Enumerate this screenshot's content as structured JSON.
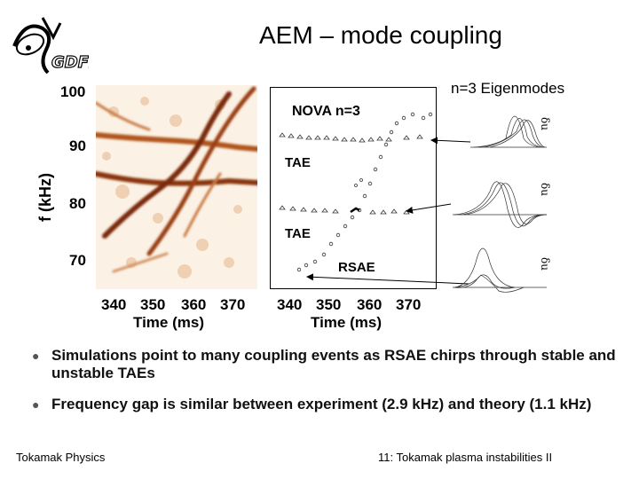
{
  "slide": {
    "title": "AEM – mode coupling",
    "logo_text": "GDFI"
  },
  "figure": {
    "ylabel": "f (kHz)",
    "yticks": [
      "100",
      "90",
      "80",
      "70"
    ],
    "xticks_left": [
      "340",
      "350",
      "360",
      "370"
    ],
    "xticks_right": [
      "340",
      "350",
      "360",
      "370"
    ],
    "xlabel_left": "Time (ms)",
    "xlabel_right": "Time (ms)",
    "nova_title": "NOVA n=3",
    "labels": [
      "TAE",
      "TAE",
      "RSAE"
    ],
    "eigen_title": "n=3 Eigenmodes",
    "eigen_axis_label": "δu"
  },
  "bullets": [
    "Simulations point to many coupling events as RSAE chirps through stable and unstable TAEs",
    "Frequency gap is similar between experiment (2.9 kHz) and theory (1.1 kHz)"
  ],
  "footer": {
    "left": "Tokamak Physics",
    "right": "11: Tokamak plasma instabilities II"
  }
}
